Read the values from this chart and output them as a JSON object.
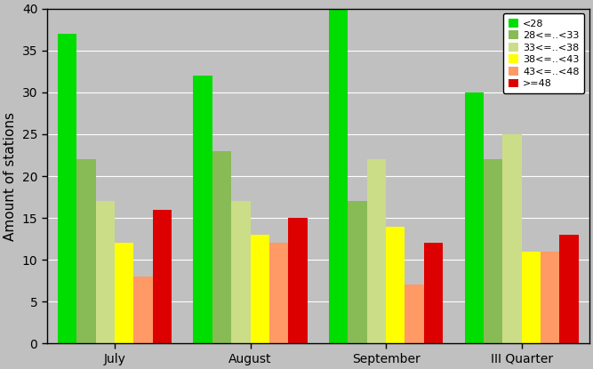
{
  "categories": [
    "July",
    "August",
    "September",
    "III Quarter"
  ],
  "series": [
    {
      "label": "<28",
      "values": [
        37,
        32,
        40,
        30
      ],
      "color": "#00dd00"
    },
    {
      "label": "28<=..<33",
      "values": [
        22,
        23,
        17,
        22
      ],
      "color": "#88bb55"
    },
    {
      "label": "33<=..<38",
      "values": [
        17,
        17,
        22,
        25
      ],
      "color": "#ccdd88"
    },
    {
      "label": "38<=..<43",
      "values": [
        12,
        13,
        14,
        11
      ],
      "color": "#ffff00"
    },
    {
      "label": "43<=..<48",
      "values": [
        8,
        12,
        7,
        11
      ],
      "color": "#ff9966"
    },
    {
      "label": ">=48",
      "values": [
        16,
        15,
        12,
        13
      ],
      "color": "#dd0000"
    }
  ],
  "ylabel": "Amount of stations",
  "ylim": [
    0,
    40
  ],
  "yticks": [
    0,
    5,
    10,
    15,
    20,
    25,
    30,
    35,
    40
  ],
  "background_color": "#c0c0c0",
  "plot_bg_color": "#c0c0c0",
  "bar_width": 0.14,
  "group_width": 0.85,
  "legend_fontsize": 8,
  "axis_fontsize": 11,
  "tick_fontsize": 10
}
